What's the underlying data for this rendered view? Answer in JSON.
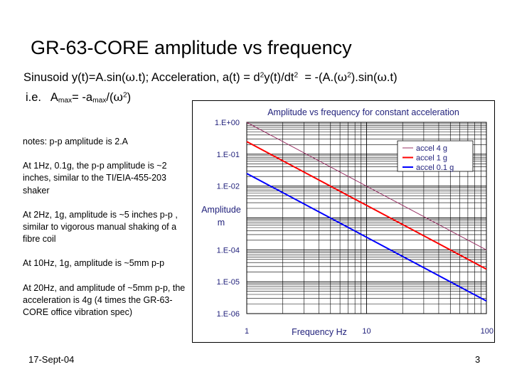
{
  "slide": {
    "title": "GR-63-CORE amplitude vs frequency",
    "formula": {
      "p1": "Sinusoid y(t)=A.sin(",
      "w1": "ω",
      "p2": ".t); Acceleration, a(t) = d",
      "s1": "2",
      "p3": "y(t)/dt",
      "s2": "2",
      "p4": "  = -(A.(",
      "w2": "ω",
      "s3": "2",
      "p5": ").sin(",
      "w3": "ω",
      "p6": ".t)"
    },
    "ie": {
      "p1": "i.e.   A",
      "sub1": "max",
      "p2": "= -a",
      "sub2": "max",
      "p3": "/(",
      "w": "ω",
      "s": "2",
      "p4": ")"
    },
    "notes": [
      "notes: p-p amplitude is 2.A",
      "At 1Hz, 0.1g, the p-p amplitude is ~2 inches, similar to the TI/EIA-455-203 shaker",
      "At 2Hz, 1g,  amplitude is ~5 inches p-p , similar to vigorous manual shaking of a fibre coil",
      "At 10Hz, 1g, amplitude is ~5mm p-p",
      "At 20Hz, and amplitude of ~5mm p-p, the acceleration is 4g (4 times the GR-63-CORE office vibration spec)"
    ],
    "footer_date": "17-Sept-04",
    "page_number": "3"
  },
  "chart_data": {
    "type": "line",
    "title": "Amplitude vs frequency for constant acceleration",
    "xlabel": "Frequency Hz",
    "ylabel_lines": [
      "Amplitude",
      "m"
    ],
    "x_scale": "log",
    "y_scale": "log",
    "xlim": [
      1,
      100
    ],
    "ylim": [
      1e-06,
      1
    ],
    "x_ticks": [
      1,
      10,
      100
    ],
    "x_tick_labels": [
      "1",
      "10",
      "100"
    ],
    "y_ticks": [
      1,
      0.1,
      0.01,
      0.001,
      0.0001,
      1e-05,
      1e-06
    ],
    "y_tick_labels": [
      "1.E+00",
      "1.E-01",
      "1.E-02",
      "",
      "1.E-04",
      "1.E-05",
      "1.E-06"
    ],
    "grid": true,
    "legend_position": "top-right",
    "series": [
      {
        "name": "accel 4 g",
        "color": "#993366",
        "x": [
          1,
          10,
          100
        ],
        "y": [
          0.9935,
          0.009935,
          9.935e-05
        ]
      },
      {
        "name": "accel 1 g",
        "color": "#ff0000",
        "x": [
          1,
          10,
          100
        ],
        "y": [
          0.2484,
          0.002484,
          2.484e-05
        ]
      },
      {
        "name": "accel 0.1 g",
        "color": "#0000ff",
        "x": [
          1,
          10,
          100
        ],
        "y": [
          0.02484,
          0.0002484,
          2.484e-06
        ]
      }
    ]
  }
}
